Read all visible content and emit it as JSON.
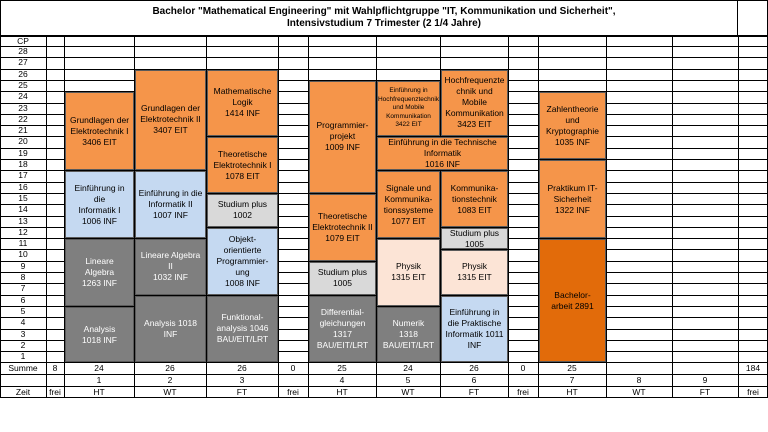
{
  "title": {
    "line1": "Bachelor \"Mathematical Engineering\" mit Wahlpflichtgruppe \"IT, Kommunikation und Sicherheit\",",
    "line2": "Intensivstudium 7 Trimester (2 1/4 Jahre)"
  },
  "cp_header": "CP",
  "cp_rows": [
    "28",
    "27",
    "26",
    "25",
    "24",
    "23",
    "22",
    "21",
    "20",
    "19",
    "18",
    "17",
    "16",
    "15",
    "14",
    "13",
    "12",
    "11",
    "10",
    "9",
    "8",
    "7",
    "6",
    "5",
    "4",
    "3",
    "2",
    "1"
  ],
  "summe_label": "Summe",
  "zeit_label": "Zeit",
  "columns": [
    {
      "summe": "8",
      "trimester": "",
      "zeit": "frei"
    },
    {
      "summe": "24",
      "trimester": "1",
      "zeit": "HT"
    },
    {
      "summe": "26",
      "trimester": "2",
      "zeit": "WT"
    },
    {
      "summe": "26",
      "trimester": "3",
      "zeit": "FT"
    },
    {
      "summe": "0",
      "trimester": "",
      "zeit": "frei"
    },
    {
      "summe": "25",
      "trimester": "4",
      "zeit": "HT"
    },
    {
      "summe": "24",
      "trimester": "5",
      "zeit": "WT"
    },
    {
      "summe": "26",
      "trimester": "6",
      "zeit": "FT"
    },
    {
      "summe": "0",
      "trimester": "",
      "zeit": "frei"
    },
    {
      "summe": "25",
      "trimester": "7",
      "zeit": "HT"
    },
    {
      "summe": "",
      "trimester": "8",
      "zeit": "WT"
    },
    {
      "summe": "",
      "trimester": "9",
      "zeit": "FT"
    },
    {
      "summe": "184",
      "trimester": "",
      "zeit": "frei"
    }
  ],
  "modules": [
    {
      "col": 1,
      "from": 1,
      "to": 5,
      "color": "gray",
      "text": "Analysis\n1018 INF"
    },
    {
      "col": 1,
      "from": 6,
      "to": 11,
      "color": "gray",
      "text": "Lineare\nAlgebra\n1263 INF"
    },
    {
      "col": 1,
      "from": 12,
      "to": 17,
      "color": "blue",
      "text": "Einführung in die\nInformatik I\n1006 INF"
    },
    {
      "col": 1,
      "from": 18,
      "to": 24,
      "color": "orange",
      "text": "Grundlagen der\nElektrotechnik I\n3406 EIT"
    },
    {
      "col": 2,
      "from": 1,
      "to": 6,
      "color": "gray",
      "text": "Analysis 1018 INF"
    },
    {
      "col": 2,
      "from": 7,
      "to": 11,
      "color": "gray",
      "text": "Lineare Algebra II\n1032 INF"
    },
    {
      "col": 2,
      "from": 12,
      "to": 17,
      "color": "blue",
      "text": "Einführung in die\nInformatik II\n1007 INF"
    },
    {
      "col": 2,
      "from": 18,
      "to": 26,
      "color": "orange",
      "text": "Grundlagen der\nElektrotechnik II\n3407 EIT"
    },
    {
      "col": 3,
      "from": 1,
      "to": 6,
      "color": "gray",
      "text": "Funktional-\nanalysis 1046\nBAU/EIT/LRT"
    },
    {
      "col": 3,
      "from": 7,
      "to": 12,
      "color": "blue",
      "text": "Objekt-\norientierte\nProgrammier-ung\n1008 INF"
    },
    {
      "col": 3,
      "from": 13,
      "to": 15,
      "color": "lgray",
      "text": "Studium plus\n1002"
    },
    {
      "col": 3,
      "from": 16,
      "to": 20,
      "color": "orange",
      "text": "Theoretische\nElektrotechnik I\n1078 EIT"
    },
    {
      "col": 3,
      "from": 21,
      "to": 26,
      "color": "orange",
      "text": "Mathematische\nLogik\n1414 INF"
    },
    {
      "col": 5,
      "from": 1,
      "to": 6,
      "color": "gray",
      "text": "Differential-\ngleichungen\n1317\nBAU/EIT/LRT"
    },
    {
      "col": 5,
      "from": 7,
      "to": 9,
      "color": "lgray",
      "text": "Studium plus\n1005"
    },
    {
      "col": 5,
      "from": 10,
      "to": 15,
      "color": "orange",
      "text": "Theoretische\nElektrotechnik II\n1079 EIT"
    },
    {
      "col": 5,
      "from": 16,
      "to": 25,
      "color": "orange",
      "text": "Programmier-\nprojekt\n1009 INF"
    },
    {
      "col": 6,
      "from": 1,
      "to": 5,
      "color": "gray",
      "text": "Numerik\n1318\nBAU/EIT/LRT"
    },
    {
      "col": 6,
      "from": 6,
      "to": 11,
      "color": "peach",
      "text": "Physik\n1315 EIT"
    },
    {
      "col": 6,
      "from": 12,
      "to": 17,
      "color": "orange",
      "text": "Signale und\nKommunika-\ntionssysteme\n1077 EIT"
    },
    {
      "col": 6,
      "from": 21,
      "to": 25,
      "color": "orange",
      "text": "Einführung in\nHochfrequenztechnik\nund Mobile\nKommunikation\n3422 EIT",
      "small": true
    },
    {
      "col": 7,
      "from": 1,
      "to": 6,
      "color": "blue",
      "text": "Einführung in\ndie Praktische\nInformatik 1011\nINF"
    },
    {
      "col": 7,
      "from": 7,
      "to": 10,
      "color": "peach",
      "text": "Physik\n1315 EIT"
    },
    {
      "col": 7,
      "from": 11,
      "to": 12,
      "color": "lgray",
      "text": "Studium plus\n1005"
    },
    {
      "col": 7,
      "from": 13,
      "to": 17,
      "color": "orange",
      "text": "Kommunika-\ntionstechnik\n1083 EIT"
    },
    {
      "col": 7,
      "from": 21,
      "to": 26,
      "color": "orange",
      "text": "Hochfrequenzte\nchnik und\nMobile\nKommunikation\n3423 EIT"
    },
    {
      "col": 6,
      "from": 18,
      "to": 20,
      "color": "orange",
      "span": 2,
      "text": "Einführung in die Technische\nInformatik\n1016 INF"
    },
    {
      "col": 9,
      "from": 1,
      "to": 11,
      "color": "dark",
      "text": "Bachelor-\narbeit 2891"
    },
    {
      "col": 9,
      "from": 12,
      "to": 18,
      "color": "orange",
      "text": "Praktikum IT-\nSicherheit\n1322 INF"
    },
    {
      "col": 9,
      "from": 19,
      "to": 24,
      "color": "orange",
      "text": "Zahlentheorie\nund\nKryptographie\n1035 INF"
    }
  ]
}
